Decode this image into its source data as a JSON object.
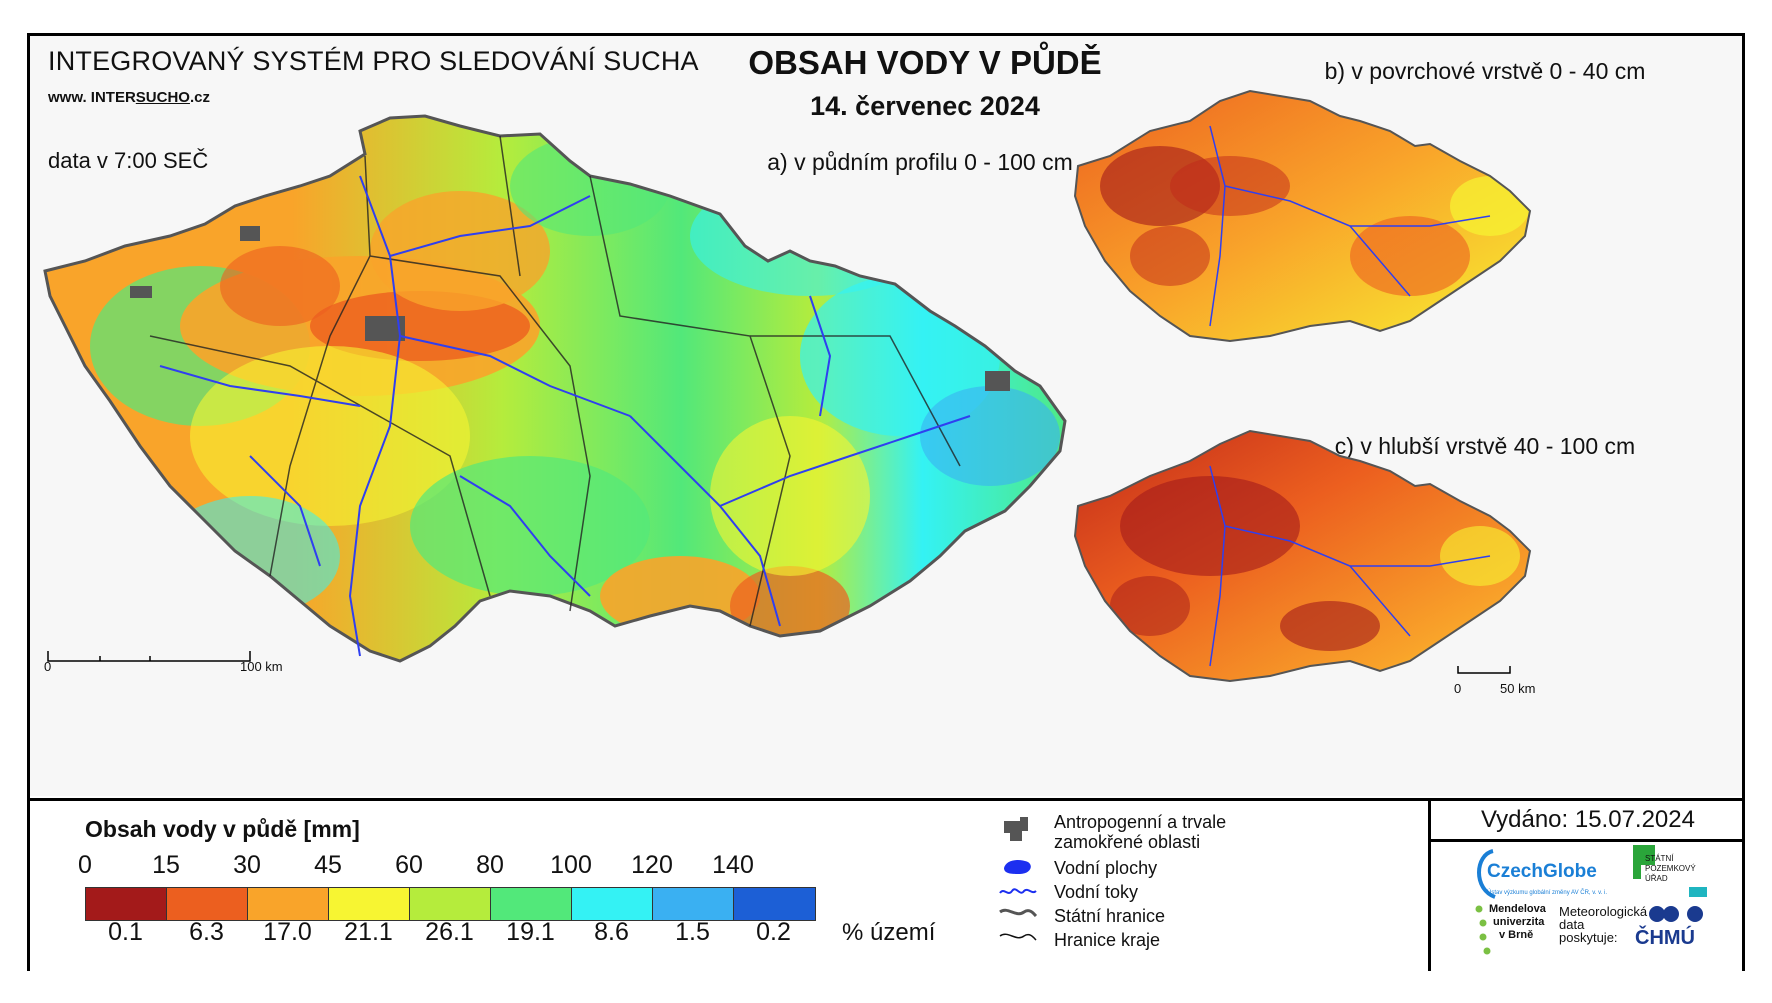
{
  "header": {
    "system_title": "INTEGROVANÝ SYSTÉM PRO SLEDOVÁNÍ SUCHA",
    "website_prefix": "www. INTER",
    "website_highlight": "SUCHO",
    "website_suffix": ".cz",
    "data_time": "data v 7:00 SEČ",
    "main_title": "OBSAH VODY V PŮDĚ",
    "date": "14. červenec 2024"
  },
  "panels": {
    "a": {
      "label": "a) v půdním profilu 0 - 100 cm",
      "scale_zero": "0",
      "scale_max": "100 km"
    },
    "b": {
      "label": "b) v povrchové vrstvě 0 - 40 cm"
    },
    "c": {
      "label": "c) v hlubší vrstvě 40 - 100 cm",
      "scale_zero": "0",
      "scale_max": "50 km"
    }
  },
  "legend": {
    "title": "Obsah vody v půdě  [mm]",
    "ticks": [
      "0",
      "15",
      "30",
      "45",
      "60",
      "80",
      "100",
      "120",
      "140"
    ],
    "classes": [
      {
        "color": "#a31a1a",
        "percent": "0.1"
      },
      {
        "color": "#ec5f1f",
        "percent": "6.3"
      },
      {
        "color": "#f9a42a",
        "percent": "17.0"
      },
      {
        "color": "#f7f532",
        "percent": "21.1"
      },
      {
        "color": "#b5ec3c",
        "percent": "26.1"
      },
      {
        "color": "#52e87a",
        "percent": "19.1"
      },
      {
        "color": "#34f2f4",
        "percent": "8.6"
      },
      {
        "color": "#3ab0f2",
        "percent": "1.5"
      },
      {
        "color": "#1c5fd6",
        "percent": "0.2"
      }
    ],
    "percent_unit": "% území",
    "symbols": [
      {
        "icon": "anthropogenic-area-icon",
        "label_line1": "Antropogenní a trvale",
        "label_line2": "zamokřené oblasti"
      },
      {
        "icon": "water-body-icon",
        "label_line1": "Vodní plochy"
      },
      {
        "icon": "river-icon",
        "label_line1": "Vodní toky"
      },
      {
        "icon": "state-border-icon",
        "label_line1": "Státní hranice"
      },
      {
        "icon": "region-border-icon",
        "label_line1": "Hranice kraje"
      }
    ]
  },
  "issuer": {
    "issued": "Vydáno: 15.07.2024",
    "czechglobe": "CzechGlobe",
    "czechglobe_sub": "Ústav výzkumu globální změny AV ČR, v. v. i.",
    "spu_line1": "STÁTNÍ",
    "spu_line2": "POZEMKOVÝ",
    "spu_line3": "ÚŘAD",
    "mendelu_line1": "Mendelova",
    "mendelu_line2": "univerzita",
    "mendelu_line3": "v Brně",
    "meteo_line1": "Meteorologická",
    "meteo_line2": "data",
    "meteo_line3": "poskytuje:",
    "chmu": "ČHMÚ"
  }
}
